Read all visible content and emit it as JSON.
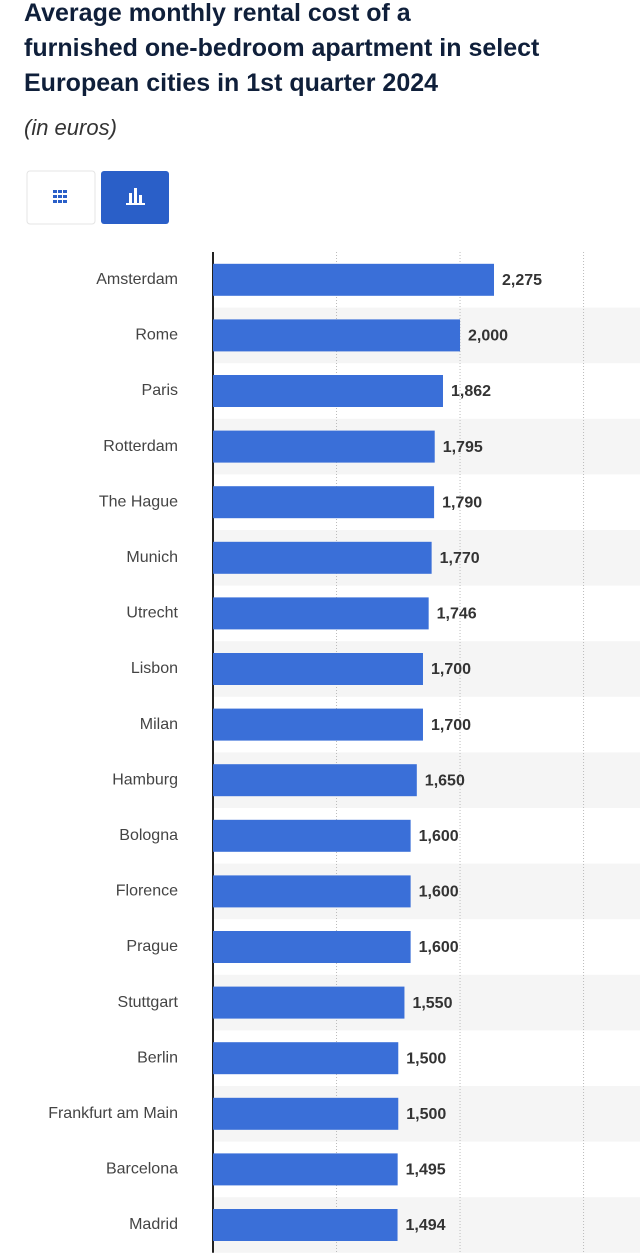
{
  "chart_data": {
    "type": "barh",
    "title": "Average monthly rental cost of a furnished one-bedroom apartment in select European cities in 1st quarter 2024",
    "subtitle": "(in euros)",
    "categories": [
      "Amsterdam",
      "Rome",
      "Paris",
      "Rotterdam",
      "The Hague",
      "Munich",
      "Utrecht",
      "Lisbon",
      "Milan",
      "Hamburg",
      "Bologna",
      "Florence",
      "Prague",
      "Stuttgart",
      "Berlin",
      "Frankfurt am Main",
      "Barcelona",
      "Madrid"
    ],
    "values": [
      2275,
      2000,
      1862,
      1795,
      1790,
      1770,
      1746,
      1700,
      1700,
      1650,
      1600,
      1600,
      1600,
      1550,
      1500,
      1500,
      1495,
      1494
    ],
    "value_labels": [
      "2,275",
      "2,000",
      "1,862",
      "1,795",
      "1,790",
      "1,770",
      "1,746",
      "1,700",
      "1,700",
      "1,650",
      "1,600",
      "1,600",
      "1,600",
      "1,550",
      "1,500",
      "1,500",
      "1,495",
      "1,494"
    ],
    "color": "#3a6fd8",
    "xlim": [
      0,
      3457
    ],
    "xticks": [
      1000,
      2000,
      3000
    ],
    "grid": true
  }
}
